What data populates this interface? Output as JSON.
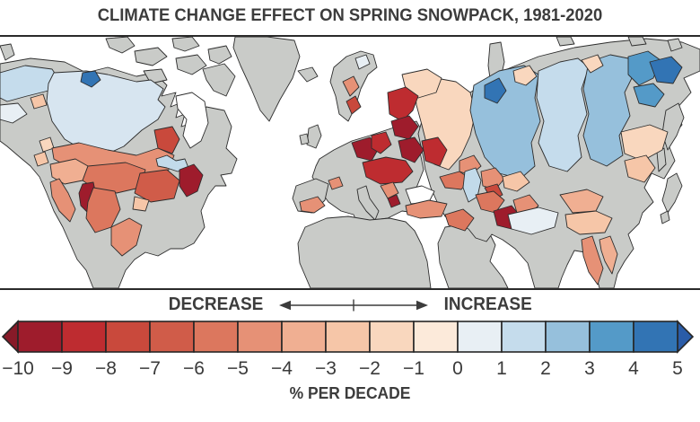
{
  "title": "CLIMATE CHANGE EFFECT ON SPRING SNOWPACK, 1981-2020",
  "legend": {
    "decrease_label": "DECREASE",
    "increase_label": "INCREASE",
    "axis_label": "% PER DECADE",
    "ticks": [
      "−10",
      "−9",
      "−8",
      "−7",
      "−6",
      "−5",
      "−4",
      "−3",
      "−2",
      "−1",
      "0",
      "1",
      "2",
      "3",
      "4",
      "5"
    ],
    "cells": [
      "m10",
      "m9",
      "m8",
      "m7",
      "m6",
      "m5",
      "m4",
      "m3",
      "m2",
      "m1",
      "p0",
      "p1",
      "p2",
      "p3",
      "p4"
    ]
  },
  "palette": {
    "m10": "#9E1C2C",
    "m9": "#BE2C30",
    "m8": "#C9493C",
    "m7": "#D05C49",
    "m6": "#DC775E",
    "m5": "#E69176",
    "m4": "#F0AF92",
    "m3": "#F6C6A8",
    "m2": "#F9D7BE",
    "m1": "#FCEADA",
    "p0": "#E8EFF4",
    "p05": "#D7E5F0",
    "p1": "#C5DCEC",
    "p2": "#96C0DC",
    "p3": "#549AC8",
    "p4": "#3274B4",
    "arrow_left": "#871A28",
    "arrow_right": "#2A5CA8",
    "nodata": "#C9CBC8",
    "ocean": "#FFFFFF",
    "lake": "#C2DAEA",
    "text": "#3a3a3a",
    "line": "#262626"
  },
  "chart_data": {
    "type": "heatmap",
    "subtype": "choropleth-world-map",
    "title": "CLIMATE CHANGE EFFECT ON SPRING SNOWPACK, 1981-2020",
    "variable": "Spring snowpack trend by drainage basin",
    "unit": "% per decade",
    "colorbar": {
      "min": -10,
      "max": 5,
      "tick_step": 1,
      "negative_color_family": "red (decrease)",
      "positive_color_family": "blue (increase)",
      "left_arrow": "values below -10",
      "right_arrow": "values above 5"
    },
    "regions": [
      {
        "region": "Alaska / Yukon basins",
        "trend_pct_per_decade": "0 to 2"
      },
      {
        "region": "Northern Canada (Mackenzie)",
        "trend_pct_per_decade": "0 to 1"
      },
      {
        "region": "Great Slave area small basin",
        "trend_pct_per_decade": "4 to 5"
      },
      {
        "region": "Southern Canada prairie basins",
        "trend_pct_per_decade": "-6 to -4"
      },
      {
        "region": "Western / central United States (Missouri, Colorado)",
        "trend_pct_per_decade": "-7 to -5"
      },
      {
        "region": "Great Basin (US)",
        "trend_pct_per_decade": "-10 to -9"
      },
      {
        "region": "Northeastern United States",
        "trend_pct_per_decade": "-10 to -9"
      },
      {
        "region": "Scandinavia",
        "trend_pct_per_decade": "-8 to -4 (mixed)"
      },
      {
        "region": "Central and Eastern Europe (Elbe, Vistula, Danube, Dnieper, Don)",
        "trend_pct_per_decade": "-10 to -8"
      },
      {
        "region": "European Russia (Volga)",
        "trend_pct_per_decade": "-2 to -1"
      },
      {
        "region": "Western Siberia (Ob)",
        "trend_pct_per_decade": "2 to 3"
      },
      {
        "region": "Central/Eastern Siberia (Yenisei, Lena)",
        "trend_pct_per_decade": "1 to 3"
      },
      {
        "region": "Northeastern Siberia (Kolyma, Indigirka)",
        "trend_pct_per_decade": "3 to 5"
      },
      {
        "region": "Caucasus / Afghanistan (Helmand)",
        "trend_pct_per_decade": "-10 to -8"
      },
      {
        "region": "Central Asia (Aral, Amu Darya)",
        "trend_pct_per_decade": "-8 to -5"
      },
      {
        "region": "Tibetan Plateau",
        "trend_pct_per_decade": "0 to 1"
      },
      {
        "region": "Amur / Northeast China",
        "trend_pct_per_decade": "-3 to -1"
      },
      {
        "region": "China (Yellow, Yangtze)",
        "trend_pct_per_decade": "-5 to -2"
      },
      {
        "region": "Southeast Asia highlands (Irrawaddy, Mekong)",
        "trend_pct_per_decade": "-6 to -4"
      },
      {
        "region": "Africa, Arabia, Mexico, India lowlands, UK",
        "trend_pct_per_decade": "no data (gray)"
      }
    ]
  }
}
